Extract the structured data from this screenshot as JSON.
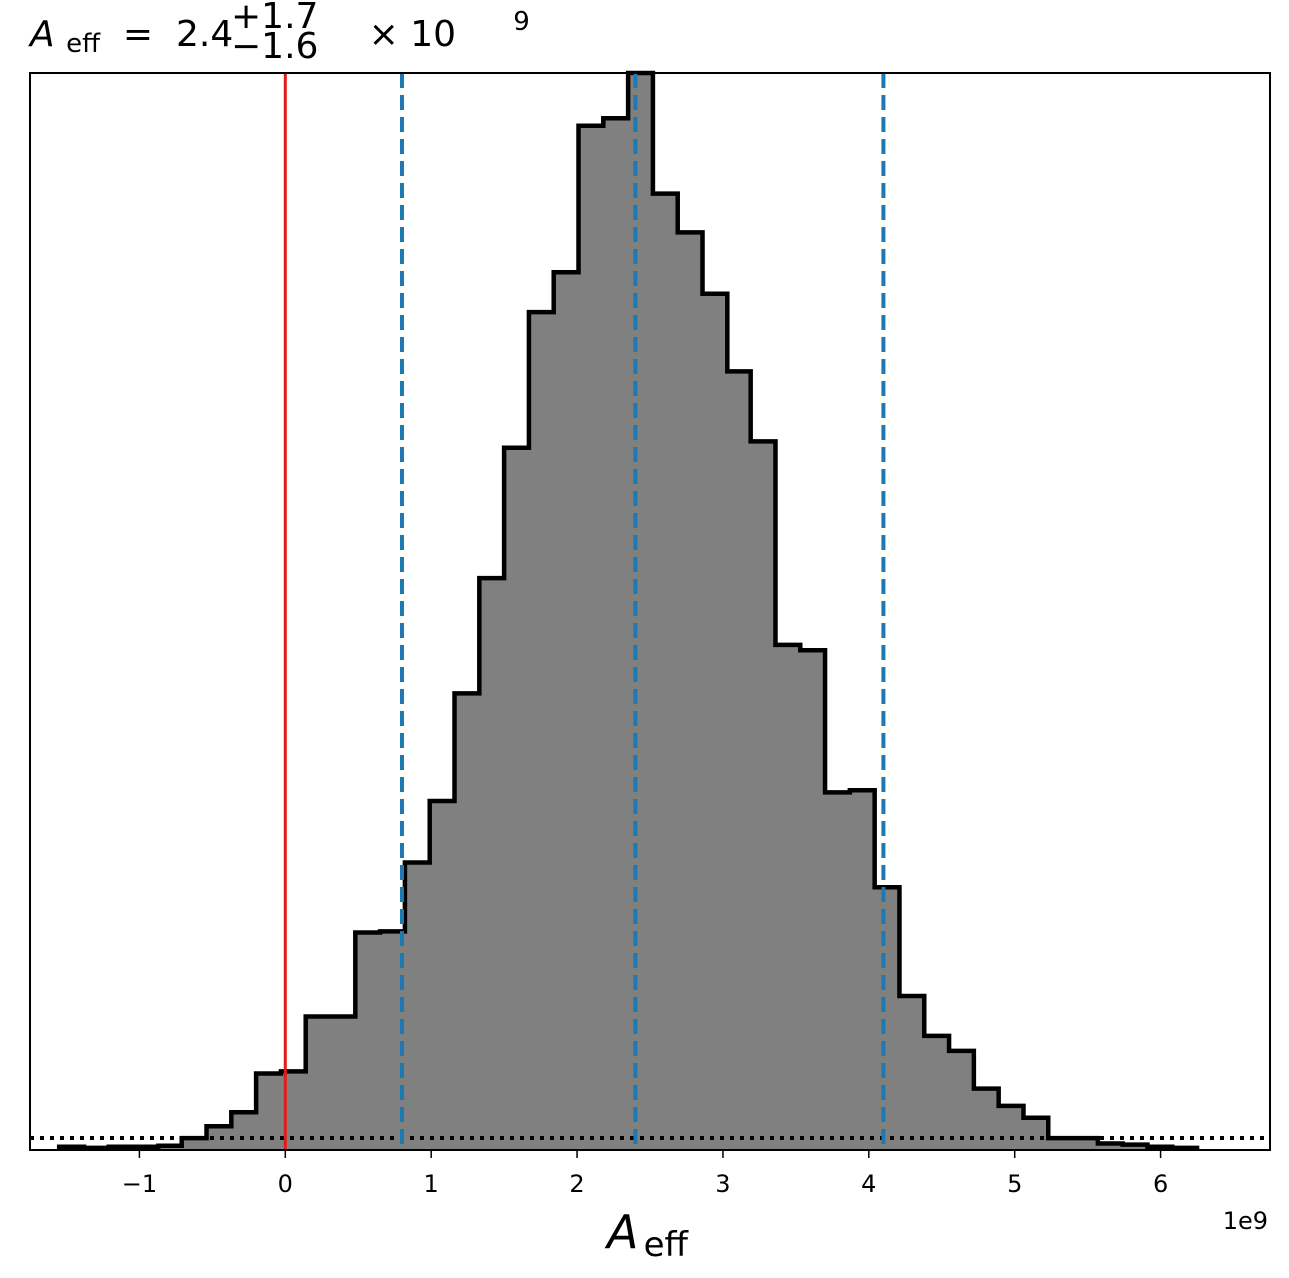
{
  "chart_data": {
    "type": "histogram",
    "title": {
      "symbol": "A",
      "subscript": "eff",
      "equals": " = ",
      "value": "2.4",
      "upper": "+1.7",
      "lower": "−1.6",
      "times": " × 10",
      "exponent": "9"
    },
    "xlabel": {
      "symbol": "A",
      "subscript": "eff"
    },
    "ylabel": "",
    "offset_text": "1e9",
    "xlim": [
      -1.75,
      6.75
    ],
    "ylim": [
      0,
      1.0
    ],
    "xticks": [
      {
        "value": -1,
        "label": "−1"
      },
      {
        "value": 0,
        "label": "0"
      },
      {
        "value": 1,
        "label": "1"
      },
      {
        "value": 2,
        "label": "2"
      },
      {
        "value": 3,
        "label": "3"
      },
      {
        "value": 4,
        "label": "4"
      },
      {
        "value": 5,
        "label": "5"
      },
      {
        "value": 6,
        "label": "6"
      }
    ],
    "bins": {
      "edges": [
        -1.55,
        -1.38,
        -1.21,
        -1.04,
        -0.87,
        -0.71,
        -0.54,
        -0.37,
        -0.2,
        -0.03,
        0.14,
        0.31,
        0.48,
        0.65,
        0.82,
        0.99,
        1.16,
        1.33,
        1.5,
        1.67,
        1.84,
        2.01,
        2.18,
        2.35,
        2.52,
        2.69,
        2.86,
        3.03,
        3.19,
        3.36,
        3.53,
        3.7,
        3.87,
        4.04,
        4.21,
        4.38,
        4.55,
        4.72,
        4.89,
        5.06,
        5.23,
        5.4,
        5.57,
        5.74,
        5.91,
        6.08,
        6.25
      ],
      "heights": [
        0.003,
        0.002,
        0.003,
        0.003,
        0.004,
        0.011,
        0.022,
        0.035,
        0.071,
        0.073,
        0.124,
        0.124,
        0.202,
        0.203,
        0.267,
        0.324,
        0.424,
        0.531,
        0.652,
        0.778,
        0.815,
        0.951,
        0.958,
        1.0,
        0.888,
        0.852,
        0.795,
        0.723,
        0.658,
        0.469,
        0.464,
        0.332,
        0.334,
        0.244,
        0.143,
        0.106,
        0.092,
        0.057,
        0.041,
        0.03,
        0.011,
        0.011,
        0.006,
        0.005,
        0.003,
        0.002
      ],
      "fill": "#808080",
      "edge": "#000000"
    },
    "prior_level": 0.0111,
    "vertical_lines": {
      "truth": {
        "x": 0.0,
        "color": "#e31a1c",
        "style": "solid"
      },
      "quantiles": [
        {
          "x": 0.8,
          "color": "#1f77b4",
          "style": "dashed"
        },
        {
          "x": 2.4,
          "color": "#1f77b4",
          "style": "dashed"
        },
        {
          "x": 4.1,
          "color": "#1f77b4",
          "style": "dashed"
        }
      ]
    },
    "grid": false,
    "legend": "none"
  }
}
